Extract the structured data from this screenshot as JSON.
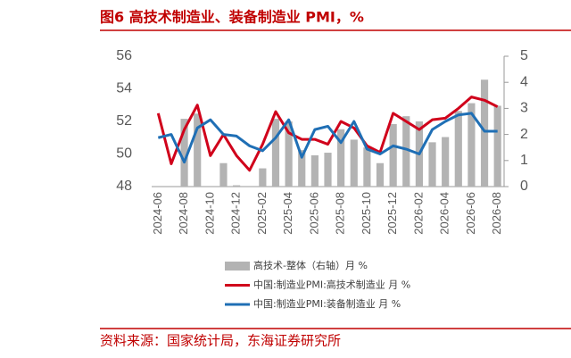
{
  "chart_data": {
    "type": "combo",
    "title": "图6  高技术制造业、装备制造业 PMI，%",
    "source": "资料来源：国家统计局，东海证券研究所",
    "categories": [
      "2024-06",
      null,
      "2024-08",
      null,
      "2024-10",
      null,
      "2024-12",
      null,
      "2025-02",
      null,
      "2025-04",
      null,
      "2025-06",
      null,
      "2025-08",
      null,
      "2025-10",
      null,
      "2025-12",
      null,
      "2026-02",
      null,
      "2026-04",
      null,
      "2026-06",
      null,
      "2026-08"
    ],
    "ylim": [
      48,
      56
    ],
    "yticks": [
      48,
      50,
      52,
      54,
      56
    ],
    "y2lim": [
      0,
      5
    ],
    "y2ticks": [
      0,
      1,
      2,
      3,
      4,
      5
    ],
    "series": [
      {
        "name": "高技术-整体（右轴）月 %",
        "type": "bar",
        "axis": "y2",
        "color": "#b3b3b3",
        "values": [
          0,
          0,
          2.6,
          2.8,
          0,
          0.9,
          0.05,
          0,
          0.7,
          2.6,
          2.5,
          1.4,
          1.2,
          1.3,
          2.2,
          1.8,
          1.5,
          0.9,
          2.4,
          2.7,
          2.5,
          1.7,
          1.9,
          2.9,
          3.2,
          4.1,
          3.1
        ]
      },
      {
        "name": "中国:制造业PMI:高技术制造业 月 %",
        "type": "line",
        "color": "#d0021b",
        "values": [
          52.5,
          49.4,
          51.5,
          53.0,
          49.9,
          51.2,
          49.9,
          49.0,
          50.6,
          52.6,
          51.3,
          50.9,
          50.9,
          50.6,
          52.0,
          51.6,
          50.5,
          50.1,
          52.5,
          52.0,
          51.5,
          52.1,
          52.2,
          52.8,
          53.5,
          53.3,
          52.9
        ]
      },
      {
        "name": "中国:制造业PMI:装备制造业 月 %",
        "type": "line",
        "color": "#1f6fb5",
        "values": [
          51.0,
          51.2,
          49.5,
          51.6,
          52.1,
          51.2,
          51.1,
          50.5,
          50.2,
          51.0,
          52.1,
          49.8,
          51.5,
          51.7,
          50.7,
          52.0,
          50.3,
          50.0,
          50.5,
          50.3,
          50.0,
          51.5,
          52.0,
          52.4,
          52.5,
          51.4,
          51.4
        ]
      }
    ]
  }
}
